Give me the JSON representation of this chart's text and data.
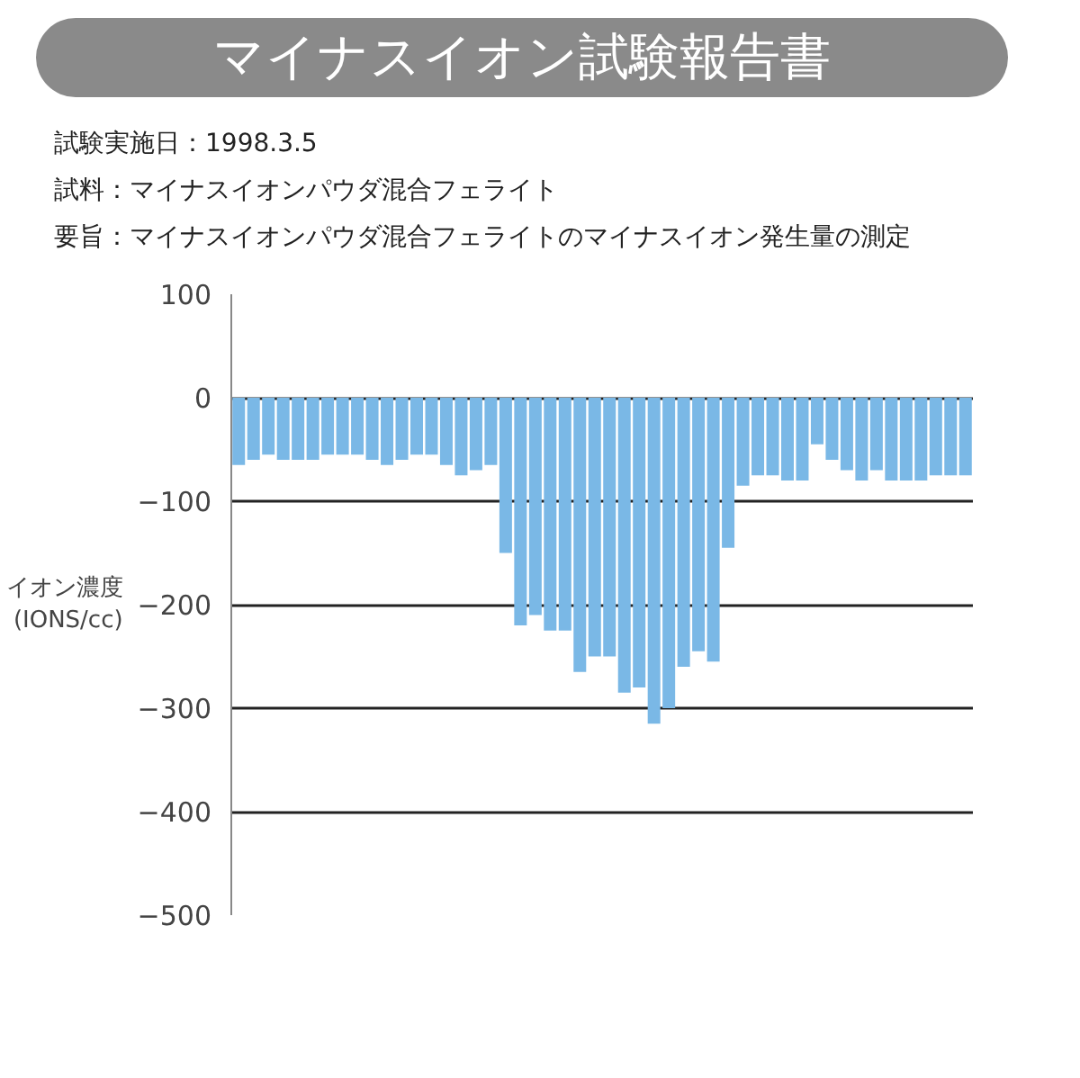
{
  "chart_data": {
    "type": "bar",
    "title": "マイナスイオン試験報告書",
    "annotations": [
      "試験実施日：1998.3.5",
      "試料：マイナスイオンパウダ混合フェライト",
      "要旨：マイナスイオンパウダ混合フェライトのマイナスイオン発生量の測定"
    ],
    "ylabel": "イオン濃度\n(IONS/cc)",
    "categories": [
      null,
      null,
      null,
      null,
      null,
      null,
      null,
      null,
      null,
      null,
      null,
      null,
      null,
      null,
      null,
      null,
      null,
      null,
      null,
      null,
      null,
      null,
      null,
      null,
      null,
      null,
      null,
      null,
      null,
      null,
      null,
      null,
      null,
      null,
      null,
      null,
      null,
      null,
      null,
      null,
      null,
      null,
      null,
      null,
      null,
      null,
      null,
      null,
      null,
      null
    ],
    "values": [
      -65,
      -60,
      -55,
      -60,
      -60,
      -60,
      -55,
      -55,
      -55,
      -60,
      -65,
      -60,
      -55,
      -55,
      -65,
      -75,
      -70,
      -65,
      -150,
      -220,
      -210,
      -225,
      -225,
      -265,
      -250,
      -250,
      -285,
      -280,
      -315,
      -300,
      -260,
      -245,
      -255,
      -145,
      -85,
      -75,
      -75,
      -80,
      -80,
      -45,
      -60,
      -70,
      -80,
      -70,
      -80,
      -80,
      -80,
      -75,
      -75,
      -75
    ],
    "color": "#7ab8e6",
    "ylim": [
      -500,
      100
    ],
    "yticks": [
      -500,
      -400,
      -300,
      -200,
      -100,
      0,
      100
    ],
    "grid": "y",
    "tick_labels": "y"
  }
}
